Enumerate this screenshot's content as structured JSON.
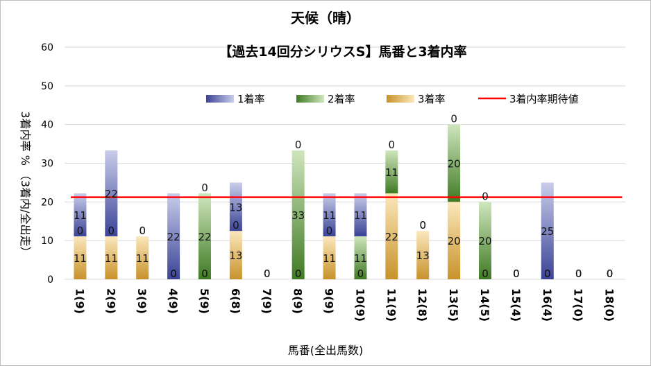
{
  "chart_data": {
    "type": "bar",
    "stacked": true,
    "title": "天候（晴）",
    "subtitle": "【過去14回分シリウスS】馬番と3着内率",
    "ylabel": "3着内率 % （3着内/全出走）",
    "xlabel": "馬番(全出馬数)",
    "ylim": [
      0,
      60
    ],
    "yticks": [
      0,
      10,
      20,
      30,
      40,
      50,
      60
    ],
    "grid": true,
    "legend_position": "top",
    "categories": [
      "1(9)",
      "2(9)",
      "3(9)",
      "4(9)",
      "5(9)",
      "6(8)",
      "7(9)",
      "8(9)",
      "9(9)",
      "10(9)",
      "11(9)",
      "12(8)",
      "13(5)",
      "14(5)",
      "15(4)",
      "16(4)",
      "17(0)",
      "18(0)"
    ],
    "series": [
      {
        "name": "1着率",
        "color": "#4a55a8",
        "values": [
          11.1,
          22.2,
          0,
          22.2,
          0,
          12.5,
          0,
          0,
          11.1,
          11.1,
          0,
          0,
          0,
          0,
          0,
          25,
          0,
          0
        ],
        "labels": [
          "11",
          "22",
          "0",
          "22",
          "0",
          "13",
          "0",
          "0",
          "11",
          "11",
          "0",
          "0",
          "0",
          "0",
          "0",
          "25",
          "0",
          "0"
        ]
      },
      {
        "name": "2着率",
        "color": "#4f8a2e",
        "values": [
          0,
          0,
          0,
          0,
          22.2,
          0,
          0,
          33.3,
          0,
          11.1,
          11.1,
          0,
          20,
          20,
          0,
          0,
          0,
          0
        ],
        "labels": [
          "0",
          "0",
          "0",
          "0",
          "22",
          "0",
          "0",
          "33",
          "0",
          "11",
          "11",
          "0",
          "20",
          "20",
          "0",
          "0",
          "0",
          "0"
        ]
      },
      {
        "name": "3着率",
        "color": "#d9a23a",
        "values": [
          11.1,
          11.1,
          11.1,
          0,
          0,
          12.5,
          0,
          0,
          11.1,
          0,
          22.2,
          12.5,
          20,
          0,
          0,
          0,
          0,
          0
        ],
        "labels": [
          "11",
          "11",
          "11",
          "0",
          "0",
          "13",
          "0",
          "0",
          "11",
          "0",
          "22",
          "13",
          "20",
          "0",
          "0",
          "0",
          "0",
          "0"
        ]
      }
    ],
    "reference_line": {
      "name": "3着内率期待値",
      "color": "#ff0000",
      "value": 21.2
    },
    "gradient_colors": {
      "blue": [
        "#3a4396",
        "#c9cdea"
      ],
      "green": [
        "#3f7a24",
        "#cfe6bd"
      ],
      "yellow": [
        "#c8922a",
        "#fbe8bd"
      ]
    }
  }
}
